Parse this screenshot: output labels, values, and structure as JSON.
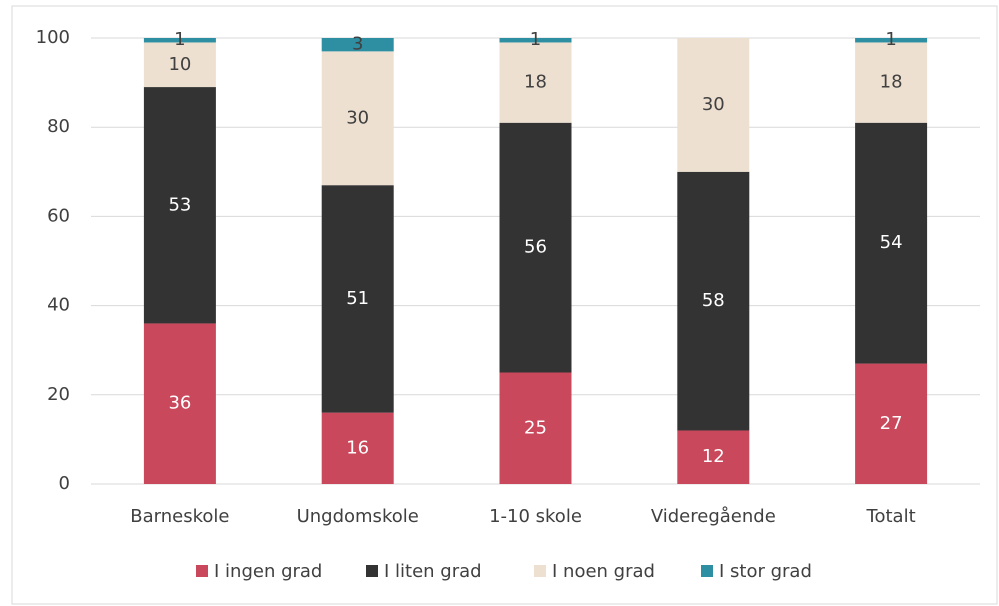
{
  "chart_data": {
    "type": "stacked_bar",
    "categories": [
      "Barneskole",
      "Ungdomskole",
      "1-10 skole",
      "Videregående",
      "Totalt"
    ],
    "series": [
      {
        "name": "I ingen grad",
        "color": "#c9485b",
        "values": [
          36,
          16,
          25,
          12,
          27
        ]
      },
      {
        "name": "I liten grad",
        "color": "#333333",
        "values": [
          53,
          51,
          56,
          58,
          54
        ]
      },
      {
        "name": "I noen grad",
        "color": "#ede0d0",
        "values": [
          10,
          30,
          18,
          30,
          18
        ]
      },
      {
        "name": "I stor grad",
        "color": "#2e8fa3",
        "values": [
          1,
          3,
          1,
          null,
          1
        ]
      }
    ],
    "ylim": [
      0,
      100
    ],
    "yticks": [
      0,
      20,
      40,
      60,
      80,
      100
    ],
    "grid": true,
    "legend": "bottom"
  }
}
